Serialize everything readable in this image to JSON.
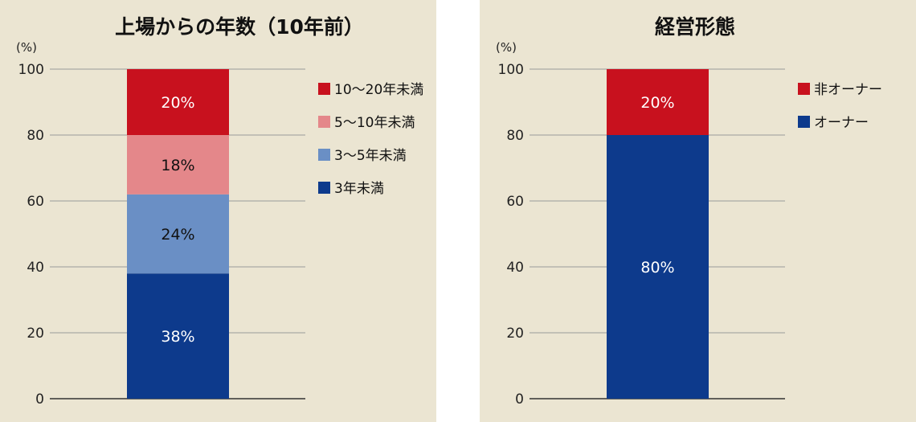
{
  "chart_data": [
    {
      "type": "bar",
      "stacked": true,
      "title": "上場からの年数（10年前）",
      "unit_label": "(%)",
      "ylim": [
        0,
        100
      ],
      "yticks": [
        0,
        20,
        40,
        60,
        80,
        100
      ],
      "series": [
        {
          "name": "3年未満",
          "value": 38,
          "label": "38%",
          "color": "#0d3a8c",
          "label_color": "#ffffff"
        },
        {
          "name": "3〜5年未満",
          "value": 24,
          "label": "24%",
          "color": "#6a8fc5",
          "label_color": "#111111"
        },
        {
          "name": "5〜10年未満",
          "value": 18,
          "label": "18%",
          "color": "#e4878a",
          "label_color": "#111111"
        },
        {
          "name": "10〜20年未満",
          "value": 20,
          "label": "20%",
          "color": "#c8111e",
          "label_color": "#ffffff"
        }
      ],
      "legend_order": [
        3,
        2,
        1,
        0
      ],
      "legend_position": "right"
    },
    {
      "type": "bar",
      "stacked": true,
      "title": "経営形態",
      "unit_label": "(%)",
      "ylim": [
        0,
        100
      ],
      "yticks": [
        0,
        20,
        40,
        60,
        80,
        100
      ],
      "series": [
        {
          "name": "オーナー",
          "value": 80,
          "label": "80%",
          "color": "#0d3a8c",
          "label_color": "#ffffff"
        },
        {
          "name": "非オーナー",
          "value": 20,
          "label": "20%",
          "color": "#c8111e",
          "label_color": "#ffffff"
        }
      ],
      "legend_order": [
        1,
        0
      ],
      "legend_position": "right"
    }
  ]
}
